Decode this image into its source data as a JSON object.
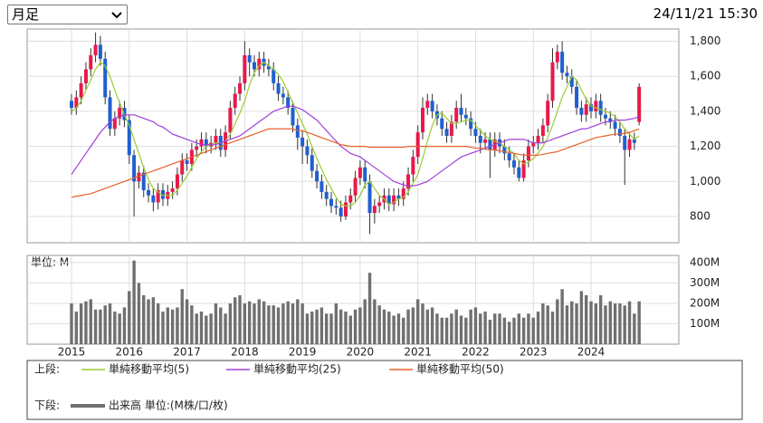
{
  "period_select": "月足",
  "timestamp": "24/11/21 15:30",
  "legend": {
    "upper_label": "上段:",
    "lower_label": "下段:"
  },
  "chart_data": [
    {
      "type": "candlestick",
      "up_color": "#e8194b",
      "down_color": "#1f5fd0",
      "grid": true,
      "ylim": [
        650,
        1870
      ],
      "yticks": [
        800,
        {
          "value": 1000,
          "label": "1,000"
        },
        {
          "value": 1200,
          "label": "1,200"
        },
        {
          "value": 1400,
          "label": "1,400"
        },
        {
          "value": 1600,
          "label": "1,600"
        },
        {
          "value": 1800,
          "label": "1,800"
        }
      ],
      "open": [
        1460,
        1420,
        1480,
        1560,
        1640,
        1720,
        1780,
        1700,
        1480,
        1300,
        1360,
        1420,
        1350,
        1150,
        1000,
        1050,
        950,
        920,
        880,
        950,
        900,
        940,
        960,
        1040,
        1120,
        1100,
        1180,
        1200,
        1240,
        1200,
        1220,
        1260,
        1180,
        1280,
        1420,
        1500,
        1560,
        1720,
        1680,
        1640,
        1700,
        1660,
        1640,
        1560,
        1500,
        1480,
        1420,
        1320,
        1250,
        1200,
        1150,
        1060,
        1000,
        940,
        900,
        860,
        850,
        800,
        880,
        920,
        1020,
        1080,
        1000,
        820,
        860,
        880,
        920,
        870,
        920,
        900,
        960,
        1040,
        1140,
        1280,
        1420,
        1460,
        1400,
        1360,
        1300,
        1260,
        1340,
        1420,
        1380,
        1360,
        1300,
        1260,
        1220,
        1240,
        1180,
        1240,
        1200,
        1160,
        1120,
        1080,
        1020,
        1120,
        1200,
        1220,
        1260,
        1320,
        1460,
        1680,
        1740,
        1620,
        1600,
        1540,
        1420,
        1380,
        1440,
        1400,
        1460,
        1380,
        1360,
        1340,
        1300,
        1260,
        1180,
        1240,
        1340
      ],
      "high": [
        1500,
        1520,
        1600,
        1680,
        1760,
        1850,
        1830,
        1740,
        1520,
        1400,
        1460,
        1460,
        1380,
        1180,
        1090,
        1090,
        990,
        960,
        990,
        990,
        980,
        1000,
        1080,
        1160,
        1160,
        1220,
        1240,
        1280,
        1280,
        1260,
        1300,
        1300,
        1320,
        1460,
        1540,
        1600,
        1800,
        1760,
        1720,
        1740,
        1740,
        1700,
        1680,
        1600,
        1540,
        1520,
        1460,
        1360,
        1290,
        1240,
        1190,
        1100,
        1040,
        980,
        940,
        900,
        890,
        920,
        960,
        1060,
        1120,
        1120,
        1040,
        900,
        920,
        960,
        960,
        960,
        960,
        1000,
        1080,
        1180,
        1320,
        1480,
        1500,
        1500,
        1440,
        1400,
        1340,
        1380,
        1460,
        1500,
        1420,
        1400,
        1340,
        1300,
        1280,
        1280,
        1280,
        1280,
        1240,
        1200,
        1160,
        1120,
        1160,
        1240,
        1260,
        1300,
        1360,
        1500,
        1760,
        1780,
        1800,
        1660,
        1640,
        1580,
        1460,
        1480,
        1480,
        1500,
        1500,
        1420,
        1400,
        1380,
        1340,
        1300,
        1280,
        1280,
        1560
      ],
      "low": [
        1380,
        1380,
        1440,
        1520,
        1600,
        1680,
        1660,
        1440,
        1260,
        1260,
        1320,
        1310,
        1100,
        800,
        960,
        910,
        880,
        830,
        840,
        860,
        860,
        900,
        920,
        1000,
        1060,
        1060,
        1140,
        1160,
        1160,
        1160,
        1180,
        1140,
        1140,
        1240,
        1380,
        1460,
        1520,
        1600,
        1600,
        1600,
        1620,
        1600,
        1520,
        1460,
        1440,
        1380,
        1280,
        1180,
        1100,
        1100,
        1020,
        960,
        900,
        860,
        820,
        810,
        770,
        780,
        840,
        880,
        980,
        960,
        700,
        760,
        820,
        840,
        830,
        830,
        860,
        860,
        920,
        1000,
        1100,
        1240,
        1380,
        1360,
        1320,
        1260,
        1220,
        1220,
        1300,
        1340,
        1320,
        1260,
        1220,
        1160,
        1180,
        1020,
        1140,
        1160,
        1120,
        1080,
        1040,
        1000,
        1000,
        1080,
        1160,
        1180,
        1220,
        1280,
        1420,
        1640,
        1580,
        1560,
        1500,
        1380,
        1340,
        1340,
        1360,
        1360,
        1340,
        1320,
        1300,
        1260,
        1220,
        980,
        1140,
        1180,
        1320
      ],
      "close": [
        1420,
        1480,
        1560,
        1640,
        1720,
        1780,
        1700,
        1480,
        1300,
        1360,
        1420,
        1350,
        1150,
        1000,
        1050,
        950,
        920,
        880,
        950,
        900,
        940,
        960,
        1040,
        1120,
        1100,
        1180,
        1200,
        1240,
        1200,
        1220,
        1260,
        1180,
        1280,
        1420,
        1500,
        1560,
        1720,
        1680,
        1640,
        1700,
        1660,
        1640,
        1560,
        1500,
        1480,
        1420,
        1320,
        1250,
        1200,
        1150,
        1060,
        1000,
        940,
        900,
        860,
        850,
        800,
        880,
        920,
        1020,
        1080,
        1000,
        820,
        860,
        880,
        920,
        870,
        920,
        900,
        960,
        1040,
        1140,
        1280,
        1420,
        1460,
        1400,
        1360,
        1300,
        1260,
        1340,
        1420,
        1380,
        1360,
        1300,
        1260,
        1220,
        1240,
        1180,
        1240,
        1200,
        1160,
        1120,
        1080,
        1020,
        1120,
        1200,
        1220,
        1260,
        1320,
        1460,
        1680,
        1740,
        1620,
        1600,
        1540,
        1420,
        1380,
        1440,
        1400,
        1460,
        1380,
        1360,
        1340,
        1300,
        1260,
        1180,
        1240,
        1220,
        1540
      ],
      "series": [
        {
          "name": "単純移動平均(5)",
          "color": "#9acd32",
          "values": [
            1400,
            1420,
            1460,
            1520,
            1580,
            1640,
            1680,
            1660,
            1600,
            1520,
            1450,
            1380,
            1320,
            1240,
            1160,
            1080,
            1010,
            960,
            940,
            920,
            920,
            920,
            950,
            990,
            1030,
            1080,
            1130,
            1170,
            1200,
            1210,
            1220,
            1220,
            1230,
            1270,
            1330,
            1390,
            1460,
            1550,
            1620,
            1660,
            1680,
            1660,
            1640,
            1610,
            1570,
            1510,
            1450,
            1390,
            1330,
            1270,
            1200,
            1130,
            1070,
            1010,
            960,
            910,
            870,
            860,
            860,
            880,
            920,
            980,
            1000,
            960,
            920,
            900,
            870,
            880,
            900,
            910,
            940,
            990,
            1040,
            1130,
            1230,
            1320,
            1380,
            1390,
            1360,
            1330,
            1330,
            1340,
            1350,
            1350,
            1320,
            1290,
            1260,
            1240,
            1230,
            1220,
            1200,
            1180,
            1160,
            1120,
            1100,
            1110,
            1130,
            1160,
            1200,
            1250,
            1320,
            1400,
            1480,
            1540,
            1600,
            1580,
            1520,
            1470,
            1430,
            1420,
            1410,
            1400,
            1390,
            1370,
            1340,
            1300,
            1270,
            1240,
            1260
          ]
        },
        {
          "name": "単純移動平均(25)",
          "color": "#a040d8",
          "values": [
            1040,
            1080,
            1120,
            1160,
            1200,
            1240,
            1280,
            1310,
            1340,
            1360,
            1370,
            1380,
            1380,
            1380,
            1370,
            1360,
            1350,
            1340,
            1320,
            1310,
            1290,
            1270,
            1260,
            1250,
            1240,
            1230,
            1220,
            1210,
            1210,
            1210,
            1210,
            1220,
            1230,
            1240,
            1250,
            1260,
            1280,
            1300,
            1320,
            1340,
            1360,
            1380,
            1400,
            1410,
            1420,
            1430,
            1430,
            1420,
            1410,
            1390,
            1370,
            1350,
            1320,
            1290,
            1260,
            1230,
            1200,
            1180,
            1160,
            1150,
            1140,
            1120,
            1100,
            1080,
            1060,
            1040,
            1020,
            1000,
            990,
            980,
            975,
            975,
            980,
            990,
            1000,
            1020,
            1040,
            1060,
            1080,
            1100,
            1120,
            1140,
            1150,
            1160,
            1170,
            1180,
            1190,
            1200,
            1210,
            1220,
            1230,
            1240,
            1240,
            1240,
            1240,
            1230,
            1220,
            1220,
            1220,
            1230,
            1240,
            1250,
            1260,
            1270,
            1280,
            1290,
            1300,
            1300,
            1310,
            1320,
            1330,
            1340,
            1340,
            1350,
            1350,
            1350,
            1355,
            1360,
            1370
          ]
        },
        {
          "name": "単純移動平均(50)",
          "color": "#e8602c",
          "values": [
            910,
            915,
            920,
            925,
            930,
            940,
            950,
            960,
            970,
            980,
            990,
            1000,
            1010,
            1020,
            1030,
            1040,
            1050,
            1060,
            1070,
            1080,
            1090,
            1100,
            1110,
            1120,
            1130,
            1140,
            1150,
            1160,
            1170,
            1180,
            1190,
            1200,
            1210,
            1220,
            1230,
            1240,
            1250,
            1260,
            1270,
            1280,
            1290,
            1300,
            1300,
            1300,
            1300,
            1300,
            1300,
            1290,
            1290,
            1280,
            1270,
            1260,
            1250,
            1240,
            1230,
            1220,
            1210,
            1205,
            1200,
            1200,
            1200,
            1200,
            1195,
            1195,
            1195,
            1195,
            1195,
            1195,
            1195,
            1195,
            1200,
            1200,
            1200,
            1200,
            1200,
            1200,
            1200,
            1200,
            1200,
            1200,
            1200,
            1200,
            1200,
            1195,
            1190,
            1190,
            1185,
            1180,
            1180,
            1175,
            1170,
            1165,
            1160,
            1155,
            1150,
            1150,
            1150,
            1150,
            1155,
            1160,
            1165,
            1170,
            1180,
            1190,
            1200,
            1210,
            1220,
            1230,
            1240,
            1250,
            1255,
            1260,
            1265,
            1270,
            1270,
            1275,
            1280,
            1290,
            1300
          ]
        }
      ]
    },
    {
      "type": "bar",
      "ylabel": "単位: M",
      "grid": true,
      "ylim": [
        0,
        435
      ],
      "yticks": [
        {
          "value": 100,
          "label": "100M"
        },
        {
          "value": 200,
          "label": "200M"
        },
        {
          "value": 300,
          "label": "300M"
        },
        {
          "value": 400,
          "label": "400M"
        }
      ],
      "categories": [
        "2015",
        null,
        null,
        null,
        null,
        null,
        null,
        null,
        null,
        null,
        null,
        null,
        "2016",
        null,
        null,
        null,
        null,
        null,
        null,
        null,
        null,
        null,
        null,
        null,
        "2017",
        null,
        null,
        null,
        null,
        null,
        null,
        null,
        null,
        null,
        null,
        null,
        "2018",
        null,
        null,
        null,
        null,
        null,
        null,
        null,
        null,
        null,
        null,
        null,
        "2019",
        null,
        null,
        null,
        null,
        null,
        null,
        null,
        null,
        null,
        null,
        null,
        "2020",
        null,
        null,
        null,
        null,
        null,
        null,
        null,
        null,
        null,
        null,
        null,
        "2021",
        null,
        null,
        null,
        null,
        null,
        null,
        null,
        null,
        null,
        null,
        null,
        "2022",
        null,
        null,
        null,
        null,
        null,
        null,
        null,
        null,
        null,
        null,
        null,
        "2023",
        null,
        null,
        null,
        null,
        null,
        null,
        null,
        null,
        null,
        null,
        null,
        "2024",
        null,
        null,
        null,
        null,
        null,
        null,
        null,
        null,
        null,
        null
      ],
      "series": [
        {
          "name": "出来高 単位:(M株/口/枚)",
          "color": "#707070",
          "values": [
            200,
            160,
            200,
            210,
            220,
            170,
            170,
            190,
            200,
            160,
            150,
            180,
            260,
            410,
            300,
            240,
            220,
            230,
            200,
            160,
            180,
            170,
            180,
            270,
            220,
            190,
            150,
            160,
            140,
            150,
            200,
            180,
            150,
            200,
            230,
            240,
            200,
            210,
            200,
            220,
            210,
            190,
            190,
            180,
            200,
            210,
            200,
            220,
            200,
            150,
            160,
            170,
            180,
            150,
            150,
            200,
            170,
            160,
            140,
            170,
            180,
            220,
            350,
            220,
            190,
            170,
            160,
            140,
            150,
            130,
            170,
            180,
            220,
            200,
            170,
            180,
            150,
            130,
            130,
            150,
            170,
            140,
            130,
            170,
            180,
            150,
            160,
            120,
            150,
            150,
            130,
            110,
            130,
            150,
            130,
            150,
            130,
            160,
            200,
            190,
            160,
            220,
            270,
            190,
            210,
            200,
            260,
            240,
            210,
            200,
            240,
            190,
            210,
            200,
            200,
            190,
            210,
            150,
            210
          ]
        }
      ]
    }
  ]
}
